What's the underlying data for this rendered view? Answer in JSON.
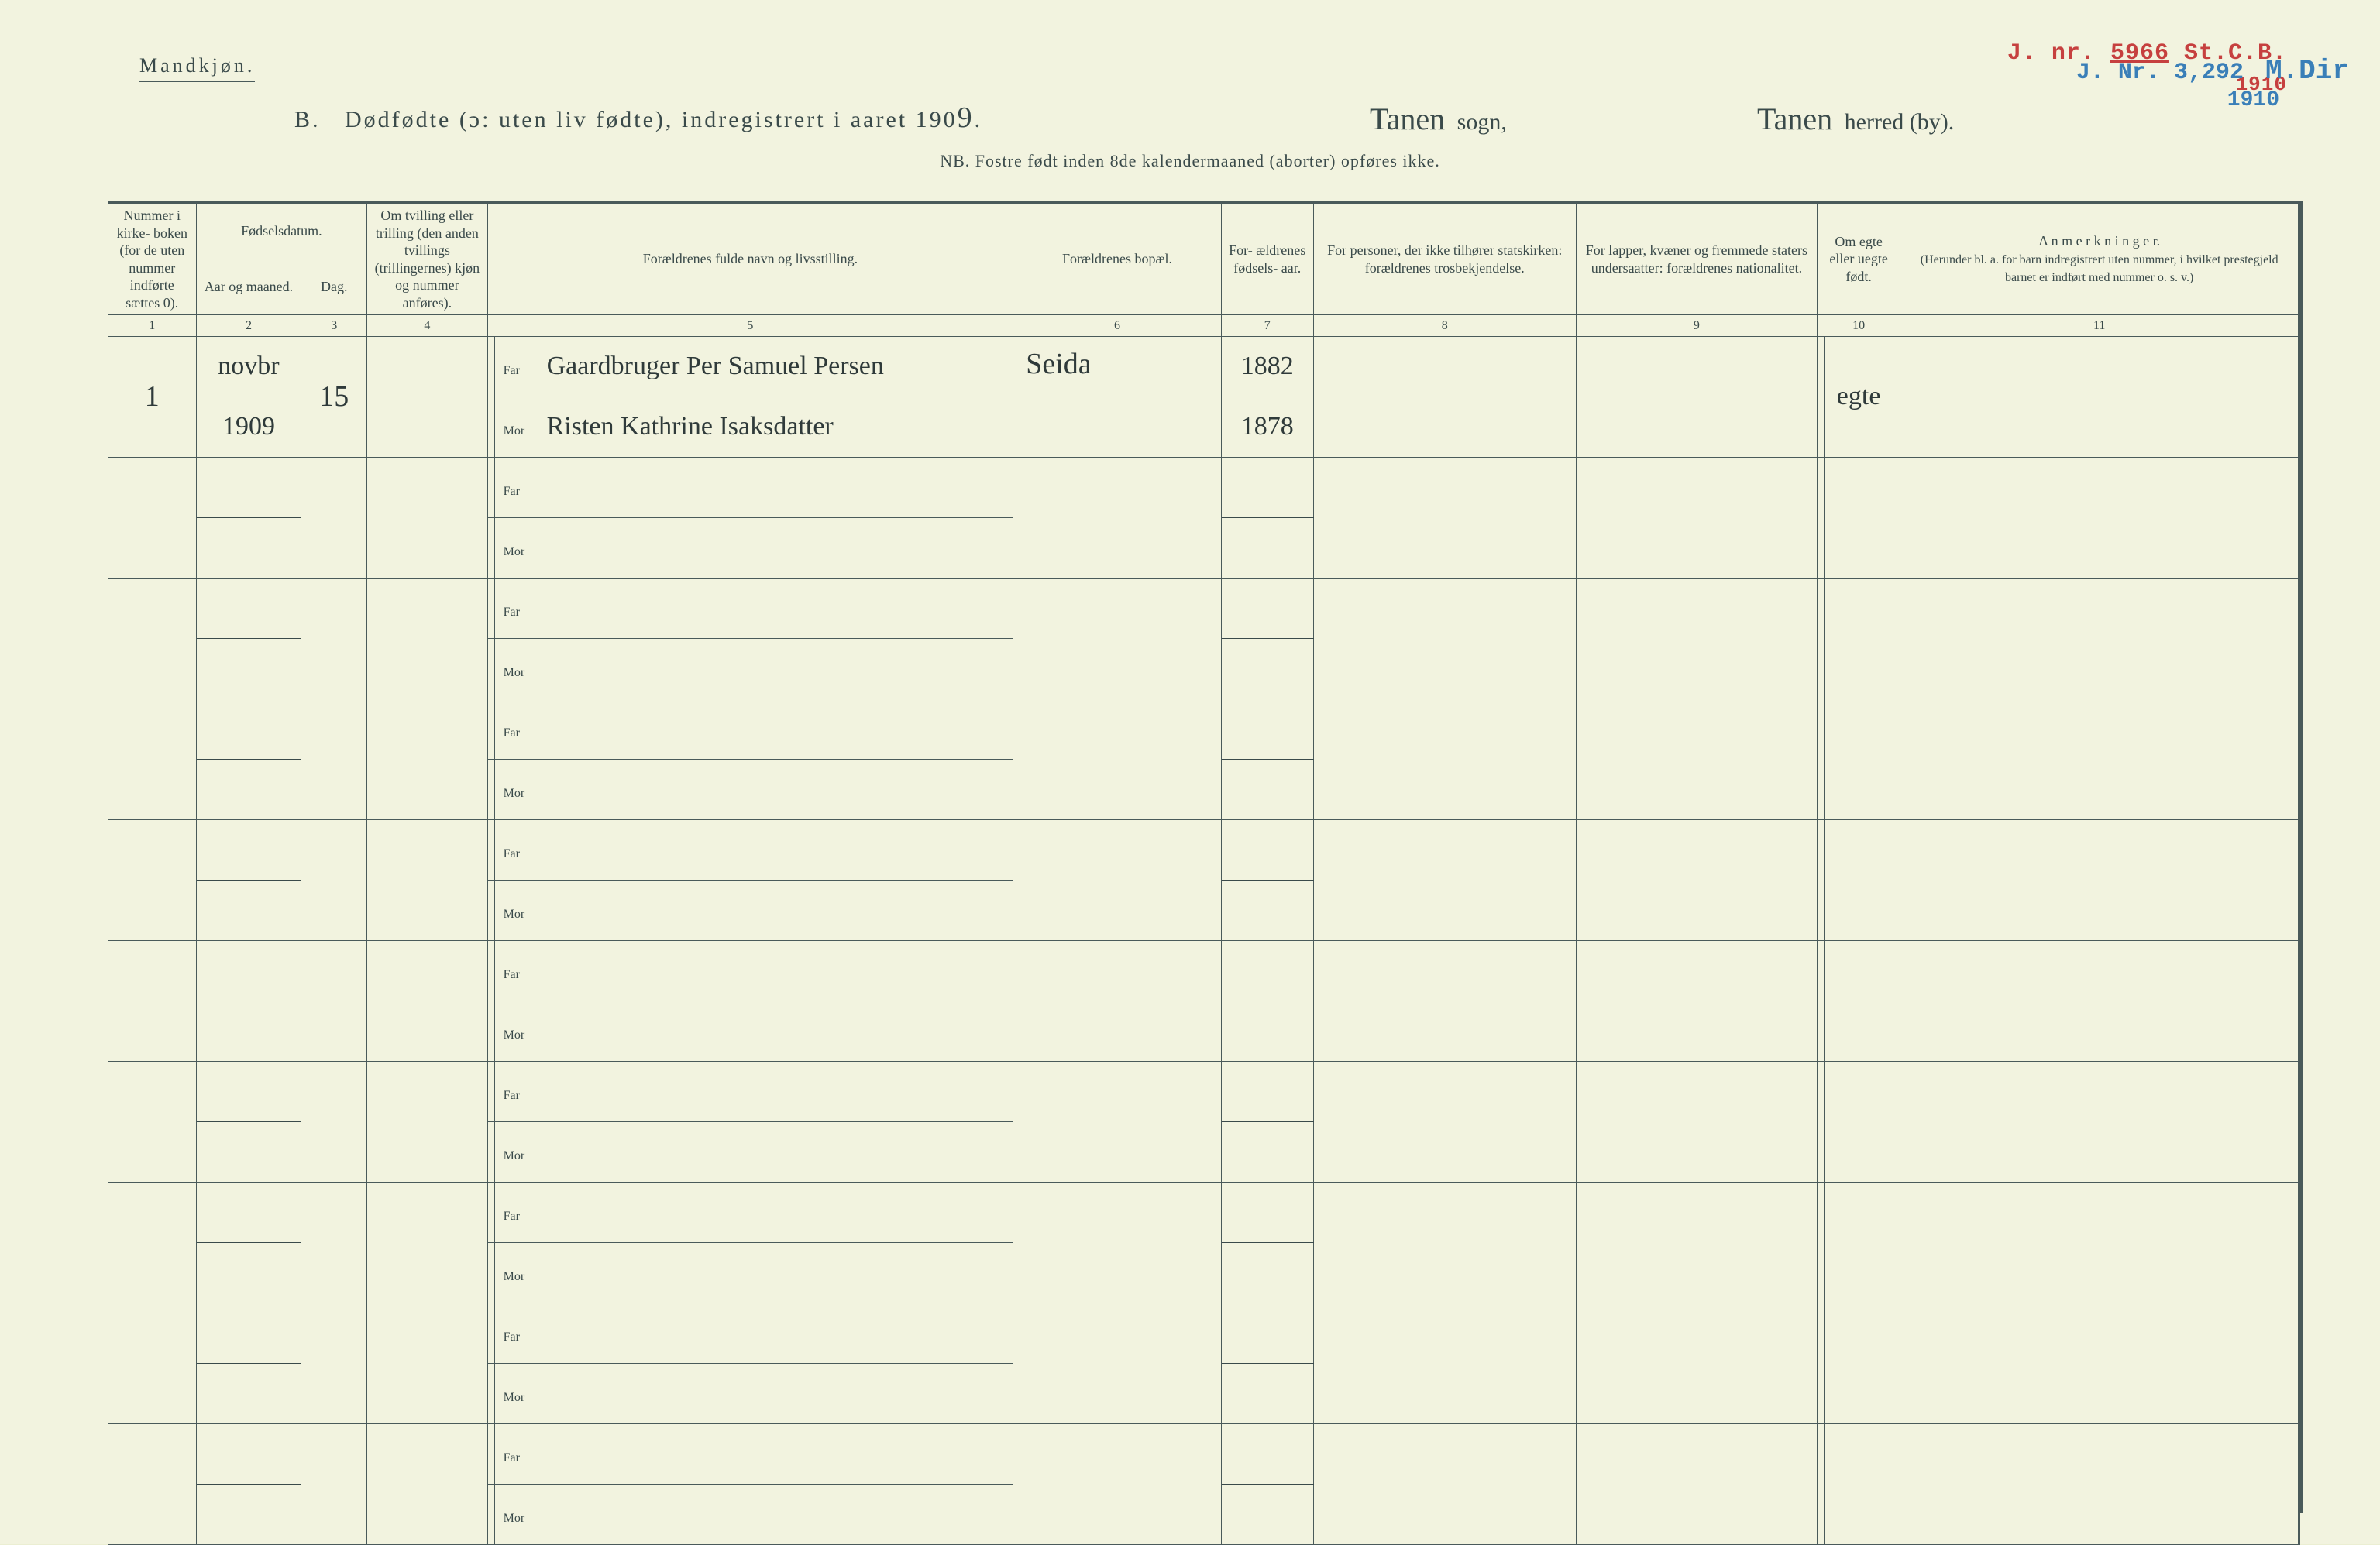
{
  "colors": {
    "page_bg": "#ebeed2",
    "sheet_bg": "#f2f3df",
    "ink": "#3a4a4a",
    "hand_ink": "#2f3a3a",
    "stamp_red": "#c6403f",
    "stamp_blue": "#3a7fb8",
    "rule": "#4a5a5a"
  },
  "stamps": {
    "red": {
      "prefix": "J. nr.",
      "number": "5966",
      "suffix": "St.C.B.",
      "year": "1910"
    },
    "blue": {
      "prefix": "J. Nr.",
      "number": "3,292",
      "suffix": "M.Dir",
      "year": "1910"
    }
  },
  "header": {
    "gender": "Mandkjøn.",
    "section_letter": "B.",
    "title_main": "Dødfødte (ɔ: uten liv fødte), indregistrert i aaret 190",
    "title_year_digit": "9",
    "title_period": ".",
    "sogn_value": "Tanen",
    "sogn_label": "sogn,",
    "herred_value": "Tanen",
    "herred_label": "herred (by).",
    "nb": "NB.  Fostre født inden 8de kalendermaaned (aborter) opføres ikke."
  },
  "columns": {
    "c1": "Nummer i kirke- boken (for de uten nummer indførte sættes 0).",
    "c23_top": "Fødselsdatum.",
    "c2": "Aar og maaned.",
    "c3": "Dag.",
    "c4": "Om tvilling eller trilling (den anden tvillings (trillingernes) kjøn og nummer anføres).",
    "c5": "Forældrenes fulde navn og livsstilling.",
    "c6": "Forældrenes bopæl.",
    "c7": "For- ældrenes fødsels- aar.",
    "c8": "For personer, der ikke tilhører statskirken: forældrenes trosbekjendelse.",
    "c9": "For lapper, kvæner og fremmede staters undersaatter: forældrenes nationalitet.",
    "c10": "Om egte eller uegte født.",
    "c11_top": "A n m e r k n i n g e r.",
    "c11_sub": "(Herunder bl. a. for barn indregistrert uten nummer, i hvilket prestegjeld barnet er indført med nummer o. s. v.)",
    "nums": [
      "1",
      "2",
      "3",
      "4",
      "5",
      "6",
      "7",
      "8",
      "9",
      "10",
      "11"
    ]
  },
  "row_labels": {
    "far": "Far",
    "mor": "Mor"
  },
  "entry": {
    "number": "1",
    "year_month_top": "novbr",
    "year_month_bot": "1909",
    "day": "15",
    "far_name": "Gaardbruger Per Samuel Persen",
    "mor_name": "Risten Kathrine Isaksdatter",
    "bopael": "Seida",
    "far_birth": "1882",
    "mor_birth": "1878",
    "egte": "egte"
  },
  "num_blank_pairs": 9
}
